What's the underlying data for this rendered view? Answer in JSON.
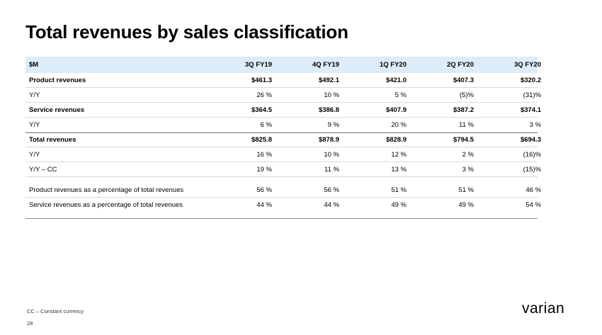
{
  "slide": {
    "title": "Total revenues by sales classification",
    "footnote": "CC – Constant currency",
    "page_number": "28",
    "brand_color": "#000000",
    "header_fill": "#dcecf8"
  },
  "table": {
    "header": {
      "label": "$M",
      "columns": [
        "3Q FY19",
        "4Q FY19",
        "1Q FY20",
        "2Q FY20",
        "3Q FY20"
      ]
    },
    "rows": [
      {
        "label": "Product revenues",
        "values": [
          "$461.3",
          "$492.1",
          "$421.0",
          "$407.3",
          "$320.2"
        ]
      },
      {
        "label": "Y/Y",
        "values": [
          "26 %",
          "10 %",
          "5 %",
          "(5)%",
          "(31)%"
        ]
      },
      {
        "label": "Service revenues",
        "values": [
          "$364.5",
          "$386.8",
          "$407.9",
          "$387.2",
          "$374.1"
        ]
      },
      {
        "label": "Y/Y",
        "values": [
          "6 %",
          "9 %",
          "20 %",
          "11 %",
          "3 %"
        ]
      },
      {
        "label": "Total revenues",
        "values": [
          "$825.8",
          "$878.9",
          "$828.9",
          "$794.5",
          "$694.3"
        ]
      },
      {
        "label": "Y/Y",
        "values": [
          "16 %",
          "10 %",
          "12 %",
          "2 %",
          "(16)%"
        ]
      },
      {
        "label": "Y/Y – CC",
        "values": [
          "19 %",
          "11 %",
          "13 %",
          "3 %",
          "(15)%"
        ]
      },
      {
        "label": "Product revenues as a percentage of total revenues",
        "values": [
          "56 %",
          "56 %",
          "51 %",
          "51 %",
          "46 %"
        ]
      },
      {
        "label": "Service revenues as a percentage of total revenues",
        "values": [
          "44 %",
          "44 %",
          "49 %",
          "49 %",
          "54 %"
        ]
      }
    ]
  },
  "logo": {
    "text": "varian",
    "icon": "varian-wordmark"
  }
}
